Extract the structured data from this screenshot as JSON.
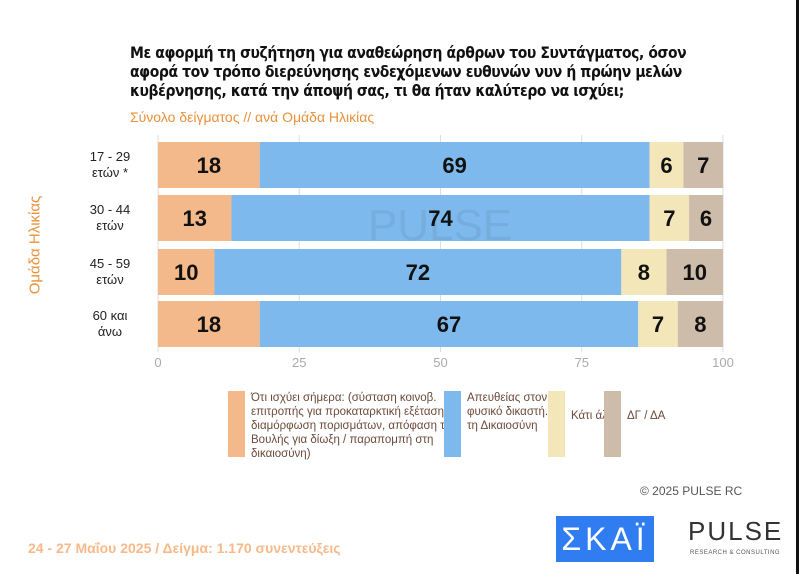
{
  "chart_data": {
    "type": "bar",
    "stacked": true,
    "orientation": "horizontal",
    "title": "Με αφορμή τη συζήτηση για αναθεώρηση άρθρων του Συντάγματος, όσον αφορά τον τρόπο διερεύνησης ενδεχόμενων ευθυνών νυν ή πρώην μελών κυβέρνησης, κατά την άποψή σας, τι θα ήταν καλύτερο να ισχύει;",
    "subtitle": "Σύνολο δείγματος // ανά Ομάδα Ηλικίας",
    "ylabel": "Ομάδα Ηλικίας",
    "categories": [
      "17 - 29 ετών *",
      "30 - 44 ετών",
      "45 - 59 ετών",
      "60 και άνω"
    ],
    "xlim": [
      0,
      100
    ],
    "xticks": [
      "0",
      "25",
      "50",
      "75",
      "100"
    ],
    "series": [
      {
        "name": "Ότι ισχύει σήμερα: (σύσταση κοινοβ. επιτροπής για προκαταρκτική εξέταση, διαμόρφωση πορισμάτων, απόφαση της Βουλής για δίωξη / παραπομπή στη δικαιοσύνη)",
        "color": "#f3b98a",
        "values": [
          18,
          13,
          10,
          18
        ]
      },
      {
        "name": "Απευθείας στον φυσικό δικαστή..., τη Δικαιοσύνη",
        "color": "#7db9ec",
        "values": [
          69,
          74,
          72,
          67
        ]
      },
      {
        "name": "Κάτι άλλο",
        "color": "#f3e6b9",
        "values": [
          6,
          7,
          8,
          7
        ]
      },
      {
        "name": "ΔΓ / ΔΑ",
        "color": "#cdbcaa",
        "values": [
          7,
          6,
          10,
          8
        ]
      }
    ]
  },
  "footer": {
    "copyright": "©  2025  PULSE RC",
    "date_sample": "24 - 27 Μαΐου 2025  /  Δείγμα:  1.170 συνεντεύξεις"
  },
  "logos": {
    "skai": "ΣΚΑΪ",
    "pulse": "PULSE",
    "pulse_sub": "RESEARCH & CONSULTING"
  }
}
